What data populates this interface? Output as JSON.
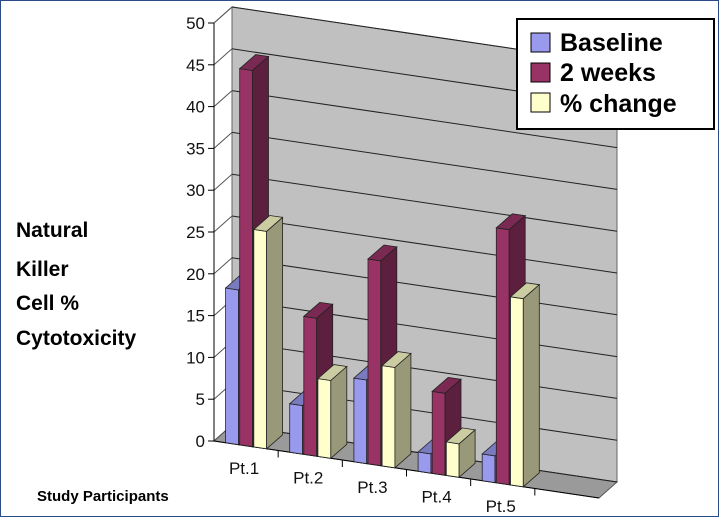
{
  "chart_data": {
    "type": "bar",
    "categories": [
      "Pt.1",
      "Pt.2",
      "Pt.3",
      "Pt.4",
      "Pt.5"
    ],
    "series": [
      {
        "name": "Baseline",
        "values": [
          18.5,
          5.8,
          10,
          2.3,
          3.2
        ],
        "color": "#9999ee"
      },
      {
        "name": "2 weeks",
        "values": [
          45,
          16.5,
          24.5,
          9.8,
          30.5
        ],
        "color": "#993366"
      },
      {
        "name": "% change",
        "values": [
          26,
          9.3,
          12,
          4,
          22.5
        ],
        "color": "#ffffcc"
      }
    ],
    "ylim": [
      0,
      50
    ],
    "yticks": [
      0,
      5,
      10,
      15,
      20,
      25,
      30,
      35,
      40,
      45,
      50
    ],
    "ylabel": [
      "Natural",
      "Killer",
      "Cell %",
      "Cytotoxicity"
    ],
    "xlabel": "Study Participants",
    "legend_position": "top-right",
    "grid": true,
    "wall_color": "#c0c0c0",
    "floor_color": "#9a9a9a"
  }
}
